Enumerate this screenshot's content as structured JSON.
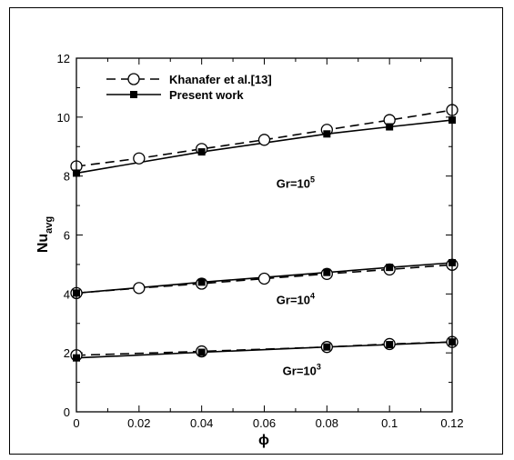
{
  "chart_data": {
    "type": "line",
    "xlabel": "ϕ",
    "ylabel": {
      "main": "Nu",
      "sub": "avg"
    },
    "xlim": [
      0,
      0.12
    ],
    "ylim": [
      0,
      12
    ],
    "x_ticks": [
      "0",
      "0.02",
      "0.04",
      "0.06",
      "0.08",
      "0.1",
      "0.12"
    ],
    "y_ticks": [
      "0",
      "2",
      "4",
      "6",
      "8",
      "10",
      "12"
    ],
    "legend": {
      "placement": "top-left",
      "entries": [
        "Khanafer et al.[13]",
        "Present work"
      ]
    },
    "annotations": [
      {
        "base": "Gr=10",
        "exp": "5",
        "at": [
          0.07,
          7.6
        ]
      },
      {
        "base": "Gr=10",
        "exp": "4",
        "at": [
          0.07,
          3.65
        ]
      },
      {
        "base": "Gr=10",
        "exp": "3",
        "at": [
          0.072,
          1.25
        ]
      }
    ],
    "series": [
      {
        "name": "Khanafer et al.[13]",
        "style": "dashed-open-circle",
        "group": "Gr=10^5",
        "x": [
          0,
          0.02,
          0.04,
          0.06,
          0.08,
          0.1,
          0.12
        ],
        "y": [
          8.33,
          8.6,
          8.92,
          9.23,
          9.57,
          9.9,
          10.24
        ]
      },
      {
        "name": "Present work",
        "style": "solid-filled-square",
        "group": "Gr=10^5",
        "x": [
          0,
          0.04,
          0.08,
          0.1,
          0.12
        ],
        "y": [
          8.1,
          8.82,
          9.43,
          9.67,
          9.9
        ]
      },
      {
        "name": "Khanafer et al.[13]",
        "style": "dashed-open-circle",
        "group": "Gr=10^4",
        "x": [
          0,
          0.02,
          0.04,
          0.06,
          0.08,
          0.1,
          0.12
        ],
        "y": [
          4.03,
          4.2,
          4.35,
          4.52,
          4.68,
          4.83,
          4.99
        ]
      },
      {
        "name": "Present work",
        "style": "solid-filled-square",
        "group": "Gr=10^4",
        "x": [
          0,
          0.04,
          0.08,
          0.1,
          0.12
        ],
        "y": [
          4.03,
          4.4,
          4.73,
          4.9,
          5.06
        ]
      },
      {
        "name": "Khanafer et al.[13]",
        "style": "dashed-open-circle",
        "group": "Gr=10^3",
        "x": [
          0,
          0.04,
          0.08,
          0.1,
          0.12
        ],
        "y": [
          1.92,
          2.05,
          2.2,
          2.3,
          2.37
        ]
      },
      {
        "name": "Present work",
        "style": "solid-filled-square",
        "group": "Gr=10^3",
        "x": [
          0,
          0.04,
          0.08,
          0.1,
          0.12
        ],
        "y": [
          1.83,
          2.02,
          2.2,
          2.28,
          2.37
        ]
      }
    ]
  }
}
